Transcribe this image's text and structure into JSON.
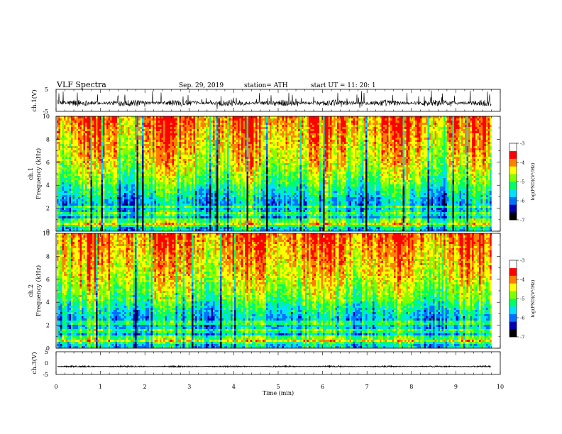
{
  "header": {
    "title": "VLF  Spectra",
    "date": "Sep. 29, 2019",
    "station": "station= ATH",
    "start": "start  UT  =    11: 20: 1"
  },
  "chart_data": [
    {
      "type": "line",
      "name": "ch1-waveform",
      "ylabel": "ch.1(V)",
      "ylim": [
        -5,
        5
      ],
      "yticks": [
        "5",
        "-5"
      ],
      "xlim": [
        0,
        10
      ],
      "baseline_v": -1.2,
      "noise_amplitude_v": 1.5,
      "x_end_min": 9.8
    },
    {
      "type": "heatmap",
      "name": "ch1-spectrogram",
      "ylabel": "ch.1",
      "ylabel2": "Frequency  (kHz)",
      "ylim": [
        0,
        10
      ],
      "yticks": [
        "0",
        "2",
        "4",
        "6",
        "8",
        "10"
      ],
      "xlim": [
        0,
        10
      ],
      "x_end_min": 9.8,
      "colorbar": {
        "label": "log(PSD)(V²/Hz)",
        "range": [
          -7,
          -3
        ],
        "ticks": [
          "-3",
          "-4",
          "-5",
          "-6",
          "-7"
        ],
        "colors": [
          "#000000",
          "#0000b0",
          "#0070ff",
          "#00e0ff",
          "#00ff60",
          "#80ff00",
          "#ffff00",
          "#ff8000",
          "#ff0000",
          "#ffffff"
        ]
      }
    },
    {
      "type": "heatmap",
      "name": "ch2-spectrogram",
      "ylabel": "ch.2",
      "ylabel2": "Frequency  (kHz)",
      "ylim": [
        0,
        10
      ],
      "yticks": [
        "0",
        "2",
        "4",
        "6",
        "8",
        "10"
      ],
      "xlim": [
        0,
        10
      ],
      "x_end_min": 9.8,
      "colorbar": {
        "label": "log(PSD)(V²/Hz)",
        "range": [
          -7,
          -3
        ],
        "ticks": [
          "-3",
          "-4",
          "-5",
          "-6",
          "-7"
        ],
        "colors": [
          "#000000",
          "#0000b0",
          "#0070ff",
          "#00e0ff",
          "#00ff60",
          "#80ff00",
          "#ffff00",
          "#ff8000",
          "#ff0000",
          "#ffffff"
        ]
      }
    },
    {
      "type": "line",
      "name": "ch3-waveform",
      "ylabel": "ch.3(V)",
      "ylim": [
        -5,
        5
      ],
      "yticks": [
        "5",
        "0",
        "-5"
      ],
      "xlim": [
        0,
        10
      ],
      "baseline_v": -1.5,
      "noise_amplitude_v": 0.3,
      "x_end_min": 9.8
    }
  ],
  "xaxis": {
    "label": "Time  (min)",
    "ticks": [
      "0",
      "1",
      "2",
      "3",
      "4",
      "5",
      "6",
      "7",
      "8",
      "9",
      "10"
    ]
  }
}
